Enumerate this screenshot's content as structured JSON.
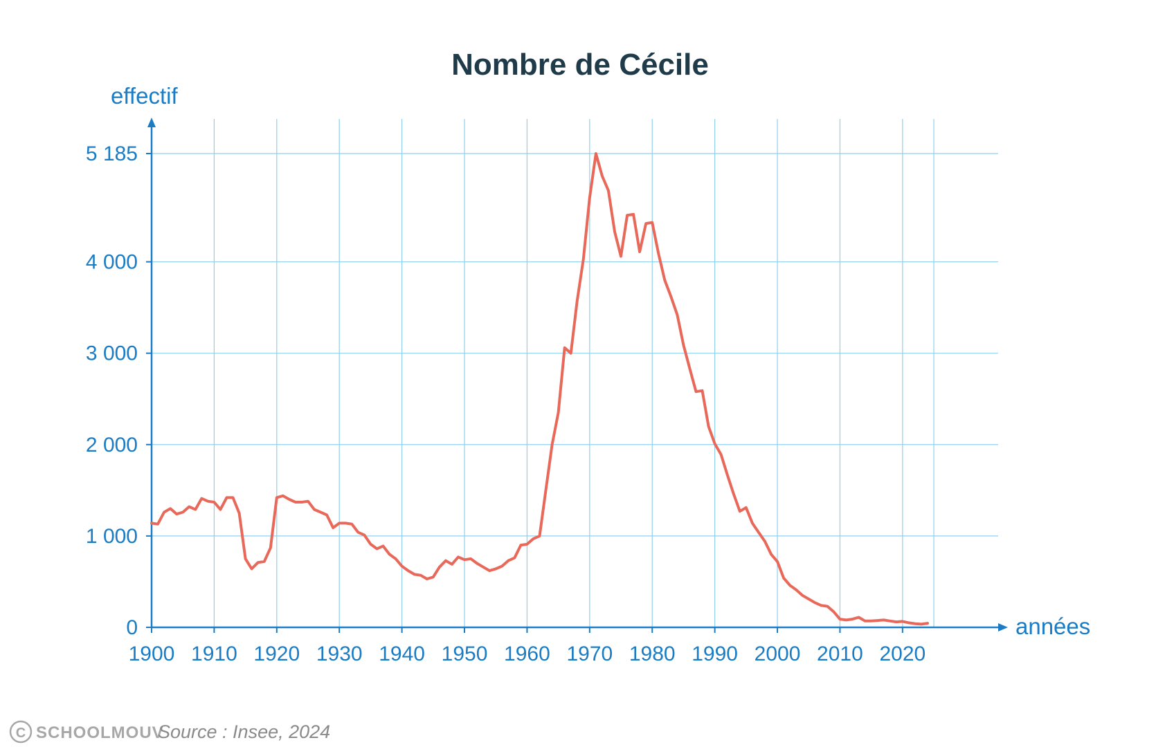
{
  "chart_data": {
    "type": "line",
    "title": "Nombre de Cécile",
    "ylabel": "effectif",
    "xlabel": "années",
    "xlim": [
      1900,
      2025
    ],
    "ylim": [
      0,
      5185
    ],
    "x_ticks": [
      1900,
      1910,
      1920,
      1930,
      1940,
      1950,
      1960,
      1970,
      1980,
      1990,
      2000,
      2010,
      2020
    ],
    "y_ticks": [
      {
        "value": 0,
        "label": "0"
      },
      {
        "value": 1000,
        "label": "1 000"
      },
      {
        "value": 2000,
        "label": "2 000"
      },
      {
        "value": 3000,
        "label": "3 000"
      },
      {
        "value": 4000,
        "label": "4 000"
      },
      {
        "value": 5185,
        "label": "5 185"
      }
    ],
    "grid": true,
    "series": [
      {
        "color": "#e8685a",
        "x": [
          1900,
          1901,
          1902,
          1903,
          1904,
          1905,
          1906,
          1907,
          1908,
          1909,
          1910,
          1911,
          1912,
          1913,
          1914,
          1915,
          1916,
          1917,
          1918,
          1919,
          1920,
          1921,
          1922,
          1923,
          1924,
          1925,
          1926,
          1927,
          1928,
          1929,
          1930,
          1931,
          1932,
          1933,
          1934,
          1935,
          1936,
          1937,
          1938,
          1939,
          1940,
          1941,
          1942,
          1943,
          1944,
          1945,
          1946,
          1947,
          1948,
          1949,
          1950,
          1951,
          1952,
          1953,
          1954,
          1955,
          1956,
          1957,
          1958,
          1959,
          1960,
          1961,
          1962,
          1963,
          1964,
          1965,
          1966,
          1967,
          1968,
          1969,
          1970,
          1971,
          1972,
          1973,
          1974,
          1975,
          1976,
          1977,
          1978,
          1979,
          1980,
          1981,
          1982,
          1983,
          1984,
          1985,
          1986,
          1987,
          1988,
          1989,
          1990,
          1991,
          1992,
          1993,
          1994,
          1995,
          1996,
          1997,
          1998,
          1999,
          2000,
          2001,
          2002,
          2003,
          2004,
          2005,
          2006,
          2007,
          2008,
          2009,
          2010,
          2011,
          2012,
          2013,
          2014,
          2015,
          2016,
          2017,
          2018,
          2019,
          2020,
          2021,
          2022,
          2023,
          2024
        ],
        "values": [
          1140,
          1130,
          1260,
          1300,
          1240,
          1260,
          1320,
          1290,
          1410,
          1380,
          1370,
          1290,
          1420,
          1420,
          1250,
          750,
          640,
          710,
          720,
          870,
          1420,
          1440,
          1400,
          1370,
          1370,
          1380,
          1290,
          1260,
          1230,
          1090,
          1140,
          1140,
          1130,
          1040,
          1010,
          910,
          860,
          890,
          800,
          750,
          670,
          620,
          580,
          570,
          530,
          550,
          660,
          730,
          690,
          770,
          740,
          750,
          700,
          660,
          620,
          640,
          670,
          730,
          760,
          900,
          910,
          970,
          1000,
          1500,
          2000,
          2350,
          3060,
          3000,
          3570,
          4030,
          4700,
          5185,
          4940,
          4780,
          4330,
          4060,
          4510,
          4520,
          4110,
          4420,
          4430,
          4090,
          3800,
          3620,
          3420,
          3090,
          2830,
          2580,
          2590,
          2200,
          2010,
          1890,
          1670,
          1460,
          1270,
          1310,
          1140,
          1040,
          940,
          800,
          720,
          540,
          460,
          410,
          350,
          310,
          270,
          240,
          230,
          170,
          90,
          80,
          90,
          110,
          70,
          70,
          75,
          80,
          70,
          60,
          65,
          50,
          40,
          35,
          45
        ]
      }
    ]
  },
  "footer": {
    "brand": "SCHOOLMOUV",
    "copyright_symbol": "C",
    "source": "Source : Insee, 2024"
  },
  "colors": {
    "axis": "#1a7cc4",
    "grid": "#8fd0ee",
    "line": "#e8685a",
    "title": "#1f3b4a"
  }
}
